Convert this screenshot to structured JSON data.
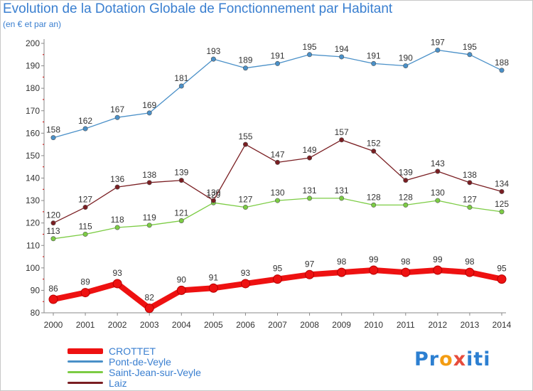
{
  "title": "Evolution de la Dotation Globale de Fonctionnement par Habitant",
  "subtitle": "(en € et par an)",
  "chart_data": {
    "type": "line",
    "title": "Evolution de la Dotation Globale de Fonctionnement par Habitant",
    "subtitle": "(en € et par an)",
    "x": [
      "2000",
      "2001",
      "2002",
      "2003",
      "2004",
      "2005",
      "2006",
      "2007",
      "2008",
      "2009",
      "2010",
      "2011",
      "2012",
      "2013",
      "2014"
    ],
    "ylim": [
      80,
      200
    ],
    "yticks": [
      80,
      90,
      100,
      110,
      120,
      130,
      140,
      150,
      160,
      170,
      180,
      190,
      200
    ],
    "grid": false,
    "legend_position": "bottom-left",
    "series": [
      {
        "name": "CROTTET",
        "color": "#ee1111",
        "values": [
          86,
          89,
          93,
          82,
          90,
          91,
          93,
          95,
          97,
          98,
          99,
          98,
          99,
          98,
          95
        ]
      },
      {
        "name": "Pont-de-Veyle",
        "color": "#4a90c8",
        "values": [
          158,
          162,
          167,
          169,
          181,
          193,
          189,
          191,
          195,
          194,
          191,
          190,
          197,
          195,
          188
        ]
      },
      {
        "name": "Saint-Jean-sur-Veyle",
        "color": "#7ccc44",
        "values": [
          113,
          115,
          118,
          119,
          121,
          129,
          127,
          130,
          131,
          131,
          128,
          128,
          130,
          127,
          125
        ]
      },
      {
        "name": "Laiz",
        "color": "#7a1e22",
        "values": [
          120,
          127,
          136,
          138,
          139,
          130,
          155,
          147,
          149,
          157,
          152,
          139,
          143,
          138,
          134
        ]
      }
    ]
  },
  "logo": {
    "letters": [
      "P",
      "r",
      "o",
      "x",
      "i",
      "t",
      "i"
    ],
    "colors": [
      "#2c7fd1",
      "#2c7fd1",
      "#f39c12",
      "#e74c3c",
      "#2c7fd1",
      "#2c7fd1",
      "#2c7fd1"
    ]
  }
}
